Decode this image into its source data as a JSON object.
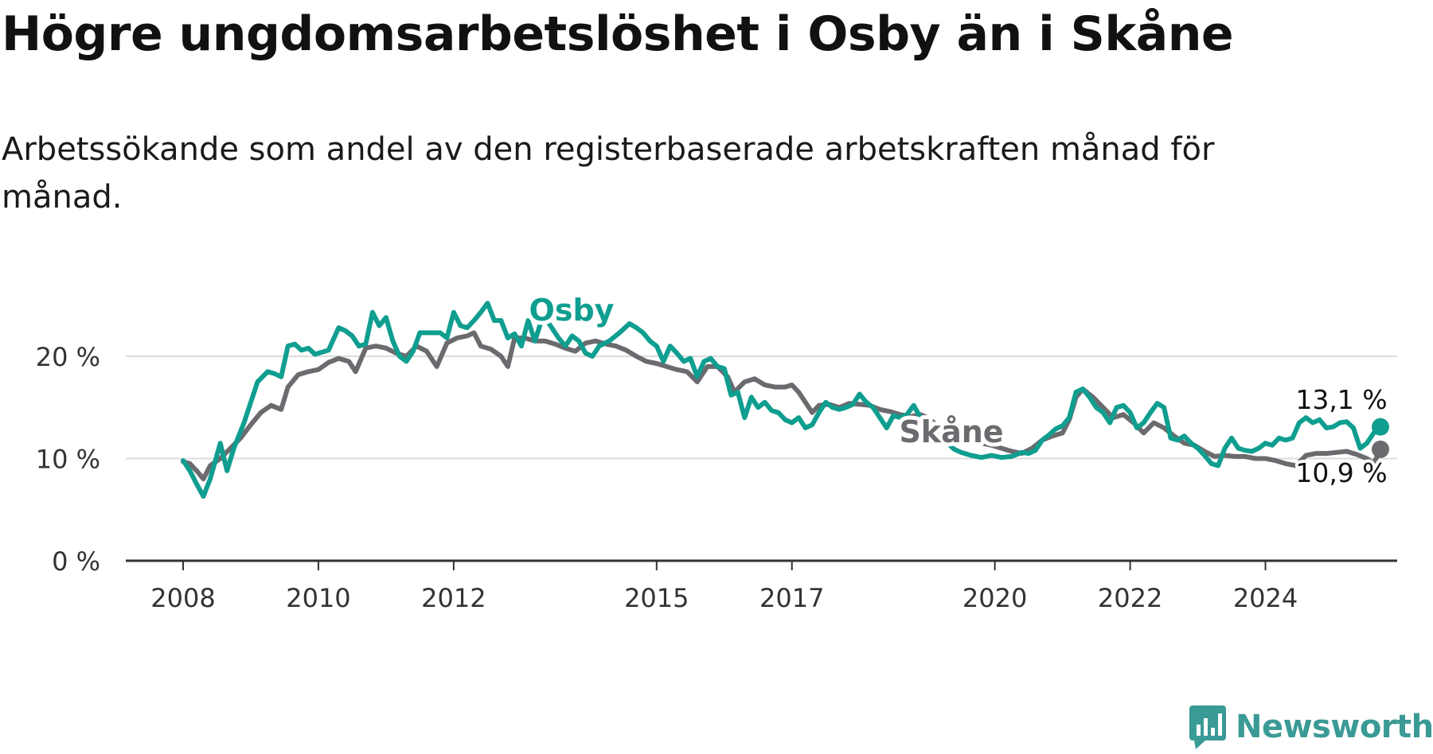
{
  "title": "Högre ungdomsarbetslöshet i Osby än i Skåne",
  "subtitle": "Arbetssökande som andel av den registerbaserade arbetskraften månad för månad.",
  "brand": {
    "name": "Newsworthy",
    "color": "#3a9a95"
  },
  "chart_data": {
    "type": "line",
    "ylim": [
      0,
      22.5
    ],
    "yticks": [
      0,
      10,
      20
    ],
    "ytick_labels": [
      "0 %",
      "10 %",
      "20 %"
    ],
    "xlim": [
      2008,
      2025.1
    ],
    "xticks": [
      2008,
      2010,
      2012,
      2015,
      2017,
      2020,
      2022,
      2024
    ],
    "xtick_labels": [
      "2008",
      "2010",
      "2012",
      "2015",
      "2017",
      "2020",
      "2022",
      "2024"
    ],
    "grid": true,
    "series": [
      {
        "name": "Osby",
        "color": "#0f9e8f",
        "end_label": "13,1 %",
        "points": [
          [
            2008.0,
            9.8
          ],
          [
            2008.1,
            8.8
          ],
          [
            2008.2,
            7.5
          ],
          [
            2008.3,
            6.3
          ],
          [
            2008.4,
            8.0
          ],
          [
            2008.55,
            11.5
          ],
          [
            2008.65,
            8.8
          ],
          [
            2008.75,
            11.0
          ],
          [
            2008.9,
            13.5
          ],
          [
            2009.0,
            15.5
          ],
          [
            2009.1,
            17.5
          ],
          [
            2009.25,
            18.5
          ],
          [
            2009.35,
            18.3
          ],
          [
            2009.45,
            18.0
          ],
          [
            2009.55,
            21.0
          ],
          [
            2009.65,
            21.2
          ],
          [
            2009.75,
            20.6
          ],
          [
            2009.85,
            20.8
          ],
          [
            2009.95,
            20.2
          ],
          [
            2010.05,
            20.4
          ],
          [
            2010.15,
            20.6
          ],
          [
            2010.3,
            22.8
          ],
          [
            2010.4,
            22.5
          ],
          [
            2010.5,
            22.0
          ],
          [
            2010.6,
            21.0
          ],
          [
            2010.7,
            21.2
          ],
          [
            2010.8,
            24.3
          ],
          [
            2010.9,
            23.0
          ],
          [
            2011.0,
            23.8
          ],
          [
            2011.1,
            21.5
          ],
          [
            2011.2,
            20.0
          ],
          [
            2011.3,
            19.5
          ],
          [
            2011.4,
            20.5
          ],
          [
            2011.5,
            22.3
          ],
          [
            2011.65,
            22.3
          ],
          [
            2011.8,
            22.3
          ],
          [
            2011.9,
            21.8
          ],
          [
            2012.0,
            24.3
          ],
          [
            2012.1,
            23.0
          ],
          [
            2012.2,
            22.8
          ],
          [
            2012.3,
            23.5
          ],
          [
            2012.4,
            24.3
          ],
          [
            2012.5,
            25.2
          ],
          [
            2012.6,
            23.5
          ],
          [
            2012.7,
            23.5
          ],
          [
            2012.8,
            21.8
          ],
          [
            2012.9,
            22.2
          ],
          [
            2013.0,
            21.0
          ],
          [
            2013.1,
            23.5
          ],
          [
            2013.2,
            21.5
          ],
          [
            2013.3,
            23.5
          ],
          [
            2013.4,
            23.3
          ],
          [
            2013.55,
            21.8
          ],
          [
            2013.65,
            21.0
          ],
          [
            2013.75,
            22.0
          ],
          [
            2013.85,
            21.5
          ],
          [
            2013.95,
            20.3
          ],
          [
            2014.05,
            20.0
          ],
          [
            2014.15,
            21.0
          ],
          [
            2014.3,
            21.5
          ],
          [
            2014.45,
            22.3
          ],
          [
            2014.6,
            23.2
          ],
          [
            2014.7,
            22.8
          ],
          [
            2014.8,
            22.3
          ],
          [
            2014.9,
            21.5
          ],
          [
            2015.0,
            21.0
          ],
          [
            2015.1,
            19.5
          ],
          [
            2015.2,
            21.0
          ],
          [
            2015.3,
            20.3
          ],
          [
            2015.4,
            19.5
          ],
          [
            2015.5,
            19.8
          ],
          [
            2015.6,
            18.0
          ],
          [
            2015.7,
            19.5
          ],
          [
            2015.8,
            19.8
          ],
          [
            2015.9,
            19.0
          ],
          [
            2016.0,
            18.8
          ],
          [
            2016.1,
            16.2
          ],
          [
            2016.2,
            16.5
          ],
          [
            2016.3,
            14.0
          ],
          [
            2016.4,
            16.0
          ],
          [
            2016.5,
            15.0
          ],
          [
            2016.6,
            15.5
          ],
          [
            2016.7,
            14.7
          ],
          [
            2016.8,
            14.5
          ],
          [
            2016.9,
            13.8
          ],
          [
            2017.0,
            13.5
          ],
          [
            2017.1,
            14.0
          ],
          [
            2017.2,
            13.0
          ],
          [
            2017.3,
            13.3
          ],
          [
            2017.4,
            14.5
          ],
          [
            2017.5,
            15.5
          ],
          [
            2017.6,
            15.0
          ],
          [
            2017.7,
            14.8
          ],
          [
            2017.8,
            15.0
          ],
          [
            2017.9,
            15.3
          ],
          [
            2018.0,
            16.3
          ],
          [
            2018.1,
            15.5
          ],
          [
            2018.2,
            15.0
          ],
          [
            2018.3,
            14.0
          ],
          [
            2018.4,
            13.0
          ],
          [
            2018.5,
            14.2
          ],
          [
            2018.6,
            14.0
          ],
          [
            2018.7,
            14.3
          ],
          [
            2018.8,
            15.2
          ],
          [
            2018.9,
            14.0
          ],
          [
            2019.0,
            13.5
          ],
          [
            2019.1,
            12.5
          ],
          [
            2019.2,
            12.2
          ],
          [
            2019.3,
            11.5
          ],
          [
            2019.4,
            10.9
          ],
          [
            2019.5,
            10.6
          ],
          [
            2019.65,
            10.3
          ],
          [
            2019.8,
            10.1
          ],
          [
            2019.95,
            10.3
          ],
          [
            2020.1,
            10.1
          ],
          [
            2020.25,
            10.2
          ],
          [
            2020.4,
            10.6
          ],
          [
            2020.5,
            10.5
          ],
          [
            2020.6,
            10.8
          ],
          [
            2020.7,
            11.8
          ],
          [
            2020.8,
            12.3
          ],
          [
            2020.9,
            12.9
          ],
          [
            2021.0,
            13.2
          ],
          [
            2021.1,
            14.0
          ],
          [
            2021.2,
            16.5
          ],
          [
            2021.3,
            16.8
          ],
          [
            2021.4,
            16.0
          ],
          [
            2021.5,
            15.0
          ],
          [
            2021.6,
            14.5
          ],
          [
            2021.7,
            13.5
          ],
          [
            2021.8,
            15.0
          ],
          [
            2021.9,
            15.2
          ],
          [
            2022.0,
            14.5
          ],
          [
            2022.1,
            13.0
          ],
          [
            2022.2,
            13.5
          ],
          [
            2022.3,
            14.5
          ],
          [
            2022.4,
            15.4
          ],
          [
            2022.5,
            15.0
          ],
          [
            2022.6,
            12.0
          ],
          [
            2022.7,
            11.8
          ],
          [
            2022.8,
            12.2
          ],
          [
            2022.9,
            11.5
          ],
          [
            2023.0,
            11.0
          ],
          [
            2023.1,
            10.3
          ],
          [
            2023.2,
            9.5
          ],
          [
            2023.3,
            9.3
          ],
          [
            2023.4,
            11.0
          ],
          [
            2023.5,
            12.0
          ],
          [
            2023.6,
            11.0
          ],
          [
            2023.7,
            10.8
          ],
          [
            2023.8,
            10.7
          ],
          [
            2023.9,
            11.0
          ],
          [
            2024.0,
            11.5
          ],
          [
            2024.1,
            11.3
          ],
          [
            2024.2,
            12.0
          ],
          [
            2024.3,
            11.8
          ],
          [
            2024.4,
            12.0
          ],
          [
            2024.5,
            13.5
          ],
          [
            2024.6,
            14.0
          ],
          [
            2024.7,
            13.5
          ],
          [
            2024.8,
            13.8
          ],
          [
            2024.9,
            13.0
          ],
          [
            2025.0,
            13.1
          ],
          [
            2025.1,
            13.5
          ],
          [
            2025.2,
            13.6
          ],
          [
            2025.3,
            13.0
          ],
          [
            2025.4,
            11.0
          ],
          [
            2025.5,
            11.5
          ],
          [
            2025.6,
            12.5
          ],
          [
            2025.7,
            13.1
          ]
        ]
      },
      {
        "name": "Skåne",
        "color": "#6b6b6f",
        "end_label": "10,9 %",
        "points": [
          [
            2008.0,
            9.7
          ],
          [
            2008.1,
            9.5
          ],
          [
            2008.2,
            8.8
          ],
          [
            2008.3,
            8.0
          ],
          [
            2008.4,
            9.3
          ],
          [
            2008.55,
            10.0
          ],
          [
            2008.7,
            11.0
          ],
          [
            2008.85,
            12.0
          ],
          [
            2009.0,
            13.3
          ],
          [
            2009.15,
            14.5
          ],
          [
            2009.3,
            15.2
          ],
          [
            2009.45,
            14.8
          ],
          [
            2009.55,
            17.0
          ],
          [
            2009.7,
            18.2
          ],
          [
            2009.85,
            18.5
          ],
          [
            2010.0,
            18.7
          ],
          [
            2010.15,
            19.4
          ],
          [
            2010.3,
            19.8
          ],
          [
            2010.45,
            19.5
          ],
          [
            2010.55,
            18.5
          ],
          [
            2010.7,
            20.8
          ],
          [
            2010.85,
            21.0
          ],
          [
            2011.0,
            20.8
          ],
          [
            2011.15,
            20.3
          ],
          [
            2011.3,
            20.0
          ],
          [
            2011.45,
            21.0
          ],
          [
            2011.6,
            20.5
          ],
          [
            2011.75,
            19.0
          ],
          [
            2011.9,
            21.3
          ],
          [
            2012.05,
            21.8
          ],
          [
            2012.2,
            22.0
          ],
          [
            2012.3,
            22.3
          ],
          [
            2012.4,
            21.0
          ],
          [
            2012.55,
            20.7
          ],
          [
            2012.7,
            20.0
          ],
          [
            2012.8,
            19.0
          ],
          [
            2012.9,
            21.8
          ],
          [
            2013.05,
            21.8
          ],
          [
            2013.2,
            21.5
          ],
          [
            2013.35,
            21.5
          ],
          [
            2013.5,
            21.2
          ],
          [
            2013.65,
            20.8
          ],
          [
            2013.8,
            20.5
          ],
          [
            2013.95,
            21.3
          ],
          [
            2014.1,
            21.5
          ],
          [
            2014.25,
            21.2
          ],
          [
            2014.4,
            21.0
          ],
          [
            2014.55,
            20.6
          ],
          [
            2014.7,
            20.0
          ],
          [
            2014.85,
            19.5
          ],
          [
            2015.0,
            19.3
          ],
          [
            2015.15,
            19.0
          ],
          [
            2015.3,
            18.7
          ],
          [
            2015.45,
            18.5
          ],
          [
            2015.6,
            17.5
          ],
          [
            2015.75,
            19.0
          ],
          [
            2015.9,
            19.0
          ],
          [
            2016.05,
            18.0
          ],
          [
            2016.15,
            16.5
          ],
          [
            2016.3,
            17.5
          ],
          [
            2016.45,
            17.8
          ],
          [
            2016.6,
            17.2
          ],
          [
            2016.75,
            17.0
          ],
          [
            2016.9,
            17.0
          ],
          [
            2017.0,
            17.2
          ],
          [
            2017.1,
            16.5
          ],
          [
            2017.2,
            15.5
          ],
          [
            2017.3,
            14.5
          ],
          [
            2017.4,
            15.2
          ],
          [
            2017.55,
            15.3
          ],
          [
            2017.7,
            15.0
          ],
          [
            2017.85,
            15.4
          ],
          [
            2018.0,
            15.3
          ],
          [
            2018.15,
            15.2
          ],
          [
            2018.3,
            14.8
          ],
          [
            2018.45,
            14.6
          ],
          [
            2018.6,
            14.3
          ],
          [
            2018.75,
            14.1
          ],
          [
            2018.9,
            14.3
          ],
          [
            2019.0,
            14.0
          ],
          [
            2019.1,
            13.5
          ],
          [
            2019.2,
            13.0
          ],
          [
            2019.35,
            12.5
          ],
          [
            2019.5,
            12.0
          ],
          [
            2019.65,
            11.8
          ],
          [
            2019.8,
            11.5
          ],
          [
            2019.95,
            11.3
          ],
          [
            2020.1,
            11.0
          ],
          [
            2020.25,
            10.7
          ],
          [
            2020.4,
            10.5
          ],
          [
            2020.55,
            11.0
          ],
          [
            2020.7,
            11.8
          ],
          [
            2020.85,
            12.2
          ],
          [
            2021.0,
            12.5
          ],
          [
            2021.1,
            13.8
          ],
          [
            2021.2,
            16.0
          ],
          [
            2021.3,
            16.8
          ],
          [
            2021.45,
            16.0
          ],
          [
            2021.6,
            15.0
          ],
          [
            2021.75,
            14.0
          ],
          [
            2021.9,
            14.3
          ],
          [
            2022.05,
            13.5
          ],
          [
            2022.2,
            12.5
          ],
          [
            2022.35,
            13.5
          ],
          [
            2022.5,
            13.0
          ],
          [
            2022.65,
            12.2
          ],
          [
            2022.8,
            11.5
          ],
          [
            2022.95,
            11.3
          ],
          [
            2023.1,
            10.7
          ],
          [
            2023.25,
            10.2
          ],
          [
            2023.4,
            10.3
          ],
          [
            2023.55,
            10.2
          ],
          [
            2023.7,
            10.2
          ],
          [
            2023.85,
            10.0
          ],
          [
            2024.0,
            10.0
          ],
          [
            2024.15,
            9.8
          ],
          [
            2024.3,
            9.5
          ],
          [
            2024.45,
            9.3
          ],
          [
            2024.6,
            10.3
          ],
          [
            2024.75,
            10.5
          ],
          [
            2024.9,
            10.5
          ],
          [
            2025.05,
            10.6
          ],
          [
            2025.2,
            10.7
          ],
          [
            2025.35,
            10.4
          ],
          [
            2025.5,
            10.0
          ],
          [
            2025.6,
            9.5
          ],
          [
            2025.7,
            10.9
          ]
        ]
      }
    ]
  }
}
